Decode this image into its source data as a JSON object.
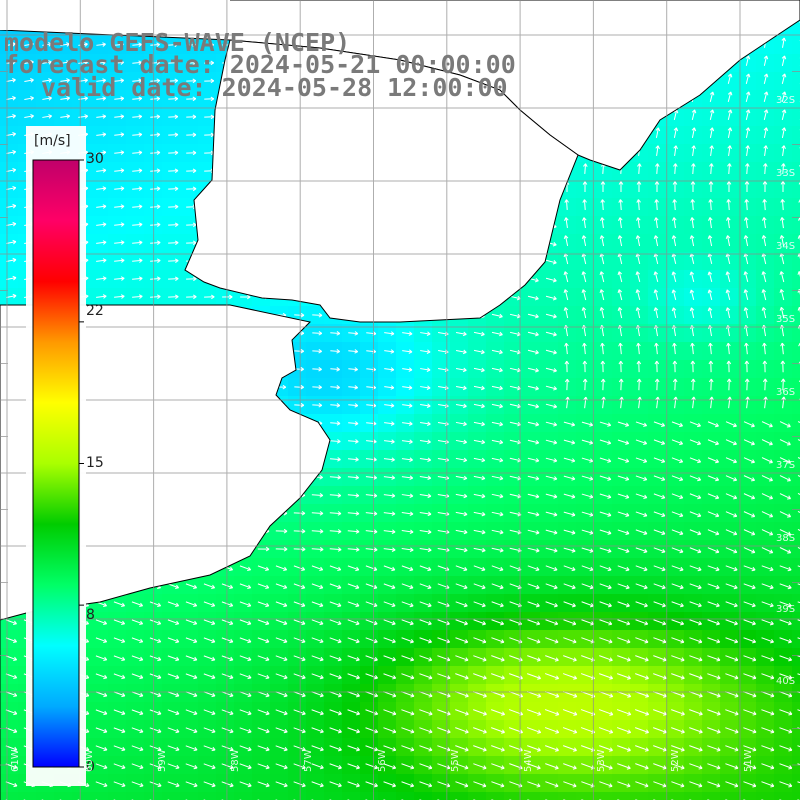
{
  "title": {
    "line1": "modelo GEFS-WAVE (NCEP)",
    "line2": "forecast date: 2024-05-21 00:00:00",
    "line3": "valid date: 2024-05-28 12:00:00"
  },
  "colorbar": {
    "unit": "[m/s]",
    "ticks": [
      "30",
      "22",
      "15",
      "8",
      "0"
    ],
    "tick_values": [
      30,
      22,
      15,
      8,
      0
    ],
    "min": 0,
    "max": 30,
    "colors": [
      "#0000ff",
      "#00aaff",
      "#00ffff",
      "#00ff66",
      "#00cc00",
      "#aaff00",
      "#ffff00",
      "#ff9900",
      "#ff0000",
      "#ff0066",
      "#c0006a"
    ]
  },
  "grid": {
    "lat_labels": [
      "32S",
      "33S",
      "34S",
      "35S",
      "36S",
      "37S",
      "38S",
      "39S",
      "40S"
    ],
    "lon_labels": [
      "61W",
      "60W",
      "59W",
      "58W",
      "57W",
      "56W",
      "55W",
      "54W",
      "53W",
      "52W",
      "51W"
    ]
  },
  "field": {
    "description_colors": {
      "land": "#ffffff",
      "coast": "#000000",
      "grid": "#8c8c8c",
      "arrow": "#ffffff"
    }
  }
}
